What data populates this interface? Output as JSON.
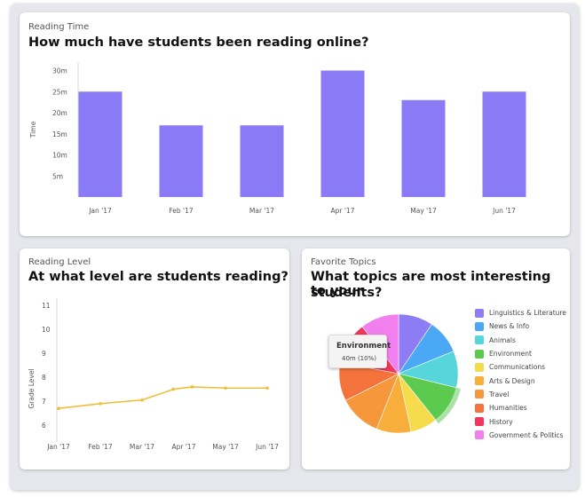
{
  "cards": {
    "reading_time": {
      "eyebrow": "Reading Time",
      "title": "How much have students been reading online?"
    },
    "reading_level": {
      "eyebrow": "Reading Level",
      "title": "At what level are students reading?"
    },
    "favorite_topics": {
      "eyebrow": "Favorite Topics",
      "title_line1": "What topics are most interesting to your",
      "title_line2": "students?"
    }
  },
  "tooltip": {
    "name": "Environment",
    "value": "40m (10%)"
  },
  "chart_data": [
    {
      "type": "bar",
      "categories": [
        "Jan '17",
        "Feb '17",
        "Mar '17",
        "Apr '17",
        "May '17",
        "Jun '17"
      ],
      "values": [
        25,
        17,
        17,
        30,
        23,
        25
      ],
      "ylabel": "Time",
      "yticks": [
        "5m",
        "10m",
        "15m",
        "20m",
        "25m",
        "30m"
      ],
      "ytick_values": [
        5,
        10,
        15,
        20,
        25,
        30
      ],
      "ylim": [
        0,
        32
      ],
      "color": "#8b7af6"
    },
    {
      "type": "line",
      "categories": [
        "Jan '17",
        "Feb '17",
        "Mar '17",
        "Apr '17",
        "May '17",
        "Jun '17"
      ],
      "points": [
        {
          "x": 0,
          "y": 6.7
        },
        {
          "x": 1,
          "y": 6.9
        },
        {
          "x": 2,
          "y": 7.05
        },
        {
          "x": 2.75,
          "y": 7.5
        },
        {
          "x": 3.2,
          "y": 7.6
        },
        {
          "x": 4,
          "y": 7.55
        },
        {
          "x": 5,
          "y": 7.55
        }
      ],
      "ylabel": "Grade Level",
      "yticks": [
        "6",
        "7",
        "8",
        "9",
        "10",
        "11"
      ],
      "ytick_values": [
        6,
        7,
        8,
        9,
        10,
        11
      ],
      "ylim": [
        5.3,
        11.3
      ],
      "color": "#f2bd3a"
    },
    {
      "type": "pie",
      "legend": "right",
      "slices": [
        {
          "label": "Linguistics & Literature",
          "value": 9,
          "color": "#8e7cf5"
        },
        {
          "label": "News & Info",
          "value": 9,
          "color": "#4aa8f5"
        },
        {
          "label": "Animals",
          "value": 9.5,
          "color": "#56d6db"
        },
        {
          "label": "Environment",
          "value": 10,
          "color": "#5cc94f"
        },
        {
          "label": "Communications",
          "value": 7,
          "color": "#f6dc4c"
        },
        {
          "label": "Arts & Design",
          "value": 9,
          "color": "#f7ae3b"
        },
        {
          "label": "Travel",
          "value": 11,
          "color": "#f7973b"
        },
        {
          "label": "Humanities",
          "value": 10,
          "color": "#f4723b"
        },
        {
          "label": "History",
          "value": 11,
          "color": "#f0365d"
        },
        {
          "label": "Government & Politics",
          "value": 10,
          "color": "#f180ee"
        }
      ]
    }
  ]
}
